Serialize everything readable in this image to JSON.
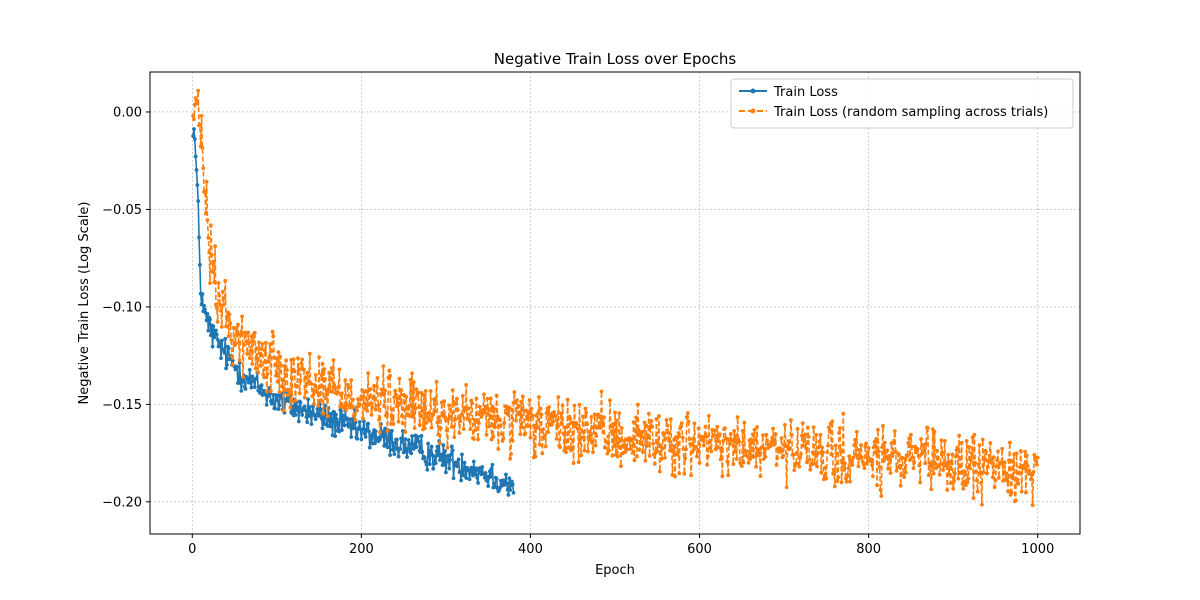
{
  "chart_data": {
    "type": "line",
    "title": "Negative Train Loss over Epochs",
    "xlabel": "Epoch",
    "ylabel": "Negative Train Loss (Log Scale)",
    "xlim": [
      -50,
      1050
    ],
    "ylim": [
      -0.2165,
      0.0205
    ],
    "xticks": [
      0,
      200,
      400,
      600,
      800,
      1000
    ],
    "yticks": [
      0.0,
      -0.05,
      -0.1,
      -0.15,
      -0.2
    ],
    "xtick_labels": [
      "0",
      "200",
      "400",
      "600",
      "800",
      "1000"
    ],
    "ytick_labels": [
      "0.00",
      "−0.05",
      "−0.10",
      "−0.15",
      "−0.20"
    ],
    "grid": true,
    "legend_position": "top-right",
    "series": [
      {
        "name": "Train Loss",
        "color": "#1f77b4",
        "style": "solid",
        "marker": "circle",
        "epochs": [
          1,
          380
        ],
        "trend": {
          "points": [
            [
              1,
              -0.005
            ],
            [
              3,
              -0.015
            ],
            [
              6,
              -0.04
            ],
            [
              10,
              -0.09
            ],
            [
              15,
              -0.105
            ],
            [
              25,
              -0.115
            ],
            [
              40,
              -0.125
            ],
            [
              60,
              -0.135
            ],
            [
              80,
              -0.142
            ],
            [
              100,
              -0.148
            ],
            [
              150,
              -0.156
            ],
            [
              200,
              -0.164
            ],
            [
              250,
              -0.171
            ],
            [
              300,
              -0.178
            ],
            [
              340,
              -0.184
            ],
            [
              380,
              -0.192
            ]
          ]
        },
        "noise": 0.004
      },
      {
        "name": "Train Loss (random sampling across trials)",
        "color": "#ff7f0e",
        "style": "dashed",
        "marker": "circle",
        "epochs": [
          1,
          1000
        ],
        "trend": {
          "points": [
            [
              1,
              0.0
            ],
            [
              5,
              0.002
            ],
            [
              10,
              -0.01
            ],
            [
              15,
              -0.04
            ],
            [
              20,
              -0.07
            ],
            [
              30,
              -0.095
            ],
            [
              50,
              -0.115
            ],
            [
              80,
              -0.125
            ],
            [
              120,
              -0.135
            ],
            [
              200,
              -0.147
            ],
            [
              300,
              -0.155
            ],
            [
              400,
              -0.161
            ],
            [
              500,
              -0.166
            ],
            [
              600,
              -0.171
            ],
            [
              700,
              -0.174
            ],
            [
              800,
              -0.178
            ],
            [
              900,
              -0.181
            ],
            [
              1000,
              -0.184
            ]
          ]
        },
        "noise": 0.008
      }
    ]
  }
}
